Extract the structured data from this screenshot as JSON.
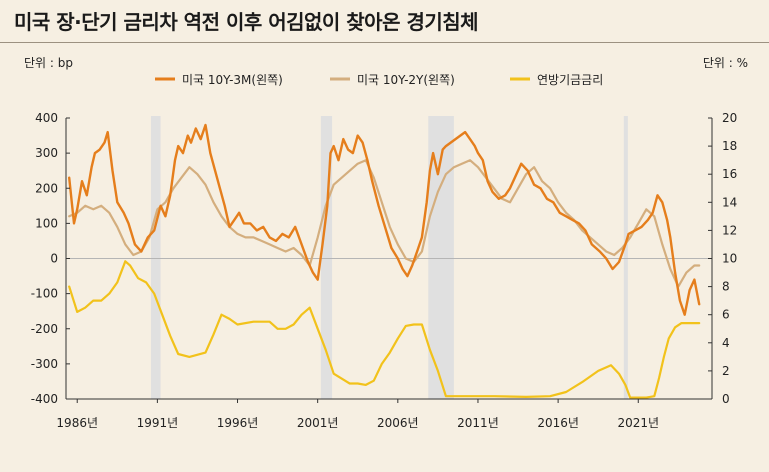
{
  "title": "미국 장·단기 금리차 역전 이후 어김없이 찾아온 경기침체",
  "chart_data": {
    "type": "line",
    "left_unit": "단위 : bp",
    "right_unit": "단위 : %",
    "colors": {
      "10y3m": "#e57e1c",
      "10y2y": "#d4ae7e",
      "fed": "#f2c21b",
      "recession": "#e0e0e0",
      "zero_line": "#b5b5b5"
    },
    "legend": [
      {
        "key": "10y3m",
        "label": "미국 10Y-3M(왼쪽)"
      },
      {
        "key": "10y2y",
        "label": "미국 10Y-2Y(왼쪽)"
      },
      {
        "key": "fed",
        "label": "연방기금금리"
      }
    ],
    "y_left": {
      "min": -400,
      "max": 400,
      "ticks": [
        "400",
        "300",
        "200",
        "100",
        "0",
        "-100",
        "-200",
        "-300",
        "-400"
      ]
    },
    "y_right": {
      "min": 0,
      "max": 20,
      "ticks": [
        "20",
        "18",
        "16",
        "14",
        "12",
        "10",
        "8",
        "6",
        "4",
        "2",
        "0"
      ]
    },
    "x_range": [
      1985.3,
      2025.6
    ],
    "x_ticks": [
      {
        "year": 1986,
        "label": "1986년"
      },
      {
        "year": 1991,
        "label": "1991년"
      },
      {
        "year": 1996,
        "label": "1996년"
      },
      {
        "year": 2001,
        "label": "2001년"
      },
      {
        "year": 2006,
        "label": "2006년"
      },
      {
        "year": 2011,
        "label": "2011년"
      },
      {
        "year": 2016,
        "label": "2016년"
      },
      {
        "year": 2021,
        "label": "2021년"
      }
    ],
    "recessions": [
      [
        1990.6,
        1991.2
      ],
      [
        2001.2,
        2001.9
      ],
      [
        2007.9,
        2009.5
      ],
      [
        2020.1,
        2020.35
      ]
    ],
    "series": [
      {
        "key": "10y3m",
        "name": "미국 10Y-3M(왼쪽)",
        "x": [
          1985.5,
          1985.8,
          1986.0,
          1986.3,
          1986.6,
          1986.9,
          1987.1,
          1987.4,
          1987.7,
          1987.9,
          1988.2,
          1988.5,
          1988.9,
          1989.2,
          1989.6,
          1990.0,
          1990.4,
          1990.8,
          1991.2,
          1991.5,
          1991.8,
          1992.1,
          1992.3,
          1992.6,
          1992.9,
          1993.1,
          1993.4,
          1993.7,
          1994.0,
          1994.3,
          1994.6,
          1994.9,
          1995.2,
          1995.5,
          1995.8,
          1996.1,
          1996.4,
          1996.8,
          1997.2,
          1997.6,
          1998.0,
          1998.4,
          1998.8,
          1999.2,
          1999.6,
          2000.0,
          2000.4,
          2000.7,
          2001.0,
          2001.3,
          2001.6,
          2001.8,
          2002.0,
          2002.3,
          2002.6,
          2002.9,
          2003.2,
          2003.5,
          2003.8,
          2004.1,
          2004.4,
          2004.8,
          2005.2,
          2005.6,
          2006.0,
          2006.3,
          2006.6,
          2006.9,
          2007.2,
          2007.5,
          2007.8,
          2008.0,
          2008.2,
          2008.5,
          2008.8,
          2009.0,
          2009.3,
          2009.6,
          2009.9,
          2010.2,
          2010.5,
          2010.8,
          2011.0,
          2011.3,
          2011.6,
          2011.9,
          2012.3,
          2012.7,
          2013.0,
          2013.3,
          2013.7,
          2014.1,
          2014.5,
          2014.9,
          2015.3,
          2015.7,
          2016.1,
          2016.5,
          2016.9,
          2017.3,
          2017.7,
          2018.1,
          2018.6,
          2019.0,
          2019.4,
          2019.8,
          2020.2,
          2020.4,
          2020.8,
          2021.2,
          2021.6,
          2021.9,
          2022.2,
          2022.5,
          2022.8,
          2023.0,
          2023.3,
          2023.6,
          2023.9,
          2024.2,
          2024.5,
          2024.8
        ],
        "y": [
          230,
          100,
          140,
          220,
          180,
          260,
          300,
          310,
          330,
          360,
          250,
          160,
          130,
          100,
          40,
          20,
          60,
          80,
          150,
          120,
          180,
          280,
          320,
          300,
          350,
          330,
          370,
          340,
          380,
          300,
          250,
          200,
          150,
          90,
          110,
          130,
          100,
          100,
          80,
          90,
          60,
          50,
          70,
          60,
          90,
          40,
          -10,
          -40,
          -60,
          40,
          150,
          300,
          320,
          280,
          340,
          310,
          300,
          350,
          330,
          280,
          220,
          150,
          90,
          30,
          0,
          -30,
          -50,
          -20,
          20,
          60,
          160,
          250,
          300,
          240,
          310,
          320,
          330,
          340,
          350,
          360,
          340,
          320,
          300,
          280,
          220,
          190,
          170,
          180,
          200,
          230,
          270,
          250,
          210,
          200,
          170,
          160,
          130,
          120,
          110,
          100,
          80,
          40,
          20,
          0,
          -30,
          -10,
          40,
          70,
          80,
          90,
          110,
          130,
          180,
          160,
          110,
          60,
          -40,
          -120,
          -160,
          -90,
          -60,
          -130
        ]
      },
      {
        "key": "10y2y",
        "name": "미국 10Y-2Y(왼쪽)",
        "x": [
          1985.5,
          1986.0,
          1986.5,
          1987.0,
          1987.5,
          1988.0,
          1988.5,
          1989.0,
          1989.5,
          1990.0,
          1990.5,
          1991.0,
          1991.5,
          1992.0,
          1992.5,
          1993.0,
          1993.5,
          1994.0,
          1994.5,
          1995.0,
          1995.5,
          1996.0,
          1996.5,
          1997.0,
          1997.5,
          1998.0,
          1998.5,
          1999.0,
          1999.5,
          2000.0,
          2000.5,
          2001.0,
          2001.5,
          2002.0,
          2002.5,
          2003.0,
          2003.5,
          2004.0,
          2004.5,
          2005.0,
          2005.5,
          2006.0,
          2006.5,
          2007.0,
          2007.5,
          2008.0,
          2008.5,
          2009.0,
          2009.5,
          2010.0,
          2010.5,
          2011.0,
          2011.5,
          2012.0,
          2012.5,
          2013.0,
          2013.5,
          2014.0,
          2014.5,
          2015.0,
          2015.5,
          2016.0,
          2016.5,
          2017.0,
          2017.5,
          2018.0,
          2018.5,
          2019.0,
          2019.5,
          2020.0,
          2020.5,
          2021.0,
          2021.5,
          2022.0,
          2022.5,
          2023.0,
          2023.5,
          2024.0,
          2024.5,
          2024.8
        ],
        "y": [
          120,
          130,
          150,
          140,
          150,
          130,
          90,
          40,
          10,
          20,
          60,
          140,
          160,
          200,
          230,
          260,
          240,
          210,
          160,
          120,
          90,
          70,
          60,
          60,
          50,
          40,
          30,
          20,
          30,
          10,
          -20,
          60,
          150,
          210,
          230,
          250,
          270,
          280,
          230,
          160,
          90,
          40,
          0,
          -10,
          20,
          120,
          190,
          240,
          260,
          270,
          280,
          260,
          230,
          200,
          170,
          160,
          200,
          240,
          260,
          220,
          200,
          160,
          130,
          110,
          80,
          60,
          40,
          20,
          10,
          30,
          60,
          100,
          140,
          120,
          40,
          -30,
          -80,
          -40,
          -20,
          -20
        ]
      },
      {
        "key": "fed",
        "name": "연방기금금리",
        "x": [
          1985.5,
          1986.0,
          1986.5,
          1987.0,
          1987.5,
          1988.0,
          1988.5,
          1989.0,
          1989.3,
          1989.8,
          1990.3,
          1990.8,
          1991.3,
          1991.8,
          1992.3,
          1993.0,
          1994.0,
          1994.5,
          1995.0,
          1995.5,
          1996.0,
          1997.0,
          1998.0,
          1998.5,
          1999.0,
          1999.5,
          2000.0,
          2000.5,
          2001.0,
          2001.5,
          2002.0,
          2003.0,
          2003.5,
          2004.0,
          2004.5,
          2005.0,
          2005.5,
          2006.0,
          2006.5,
          2007.0,
          2007.5,
          2008.0,
          2008.5,
          2009.0,
          2010.0,
          2012.0,
          2014.0,
          2015.5,
          2016.5,
          2017.5,
          2018.5,
          2019.3,
          2019.8,
          2020.2,
          2020.5,
          2021.5,
          2022.0,
          2022.3,
          2022.6,
          2022.9,
          2023.3,
          2023.7,
          2024.2,
          2024.8
        ],
        "y": [
          8.0,
          6.2,
          6.5,
          7.0,
          7.0,
          7.5,
          8.3,
          9.8,
          9.5,
          8.6,
          8.3,
          7.5,
          6.0,
          4.5,
          3.2,
          3.0,
          3.3,
          4.6,
          6.0,
          5.7,
          5.3,
          5.5,
          5.5,
          5.0,
          5.0,
          5.3,
          6.0,
          6.5,
          5.0,
          3.5,
          1.8,
          1.1,
          1.1,
          1.0,
          1.3,
          2.5,
          3.3,
          4.3,
          5.2,
          5.3,
          5.3,
          3.5,
          2.0,
          0.2,
          0.2,
          0.2,
          0.15,
          0.2,
          0.5,
          1.2,
          2.0,
          2.4,
          1.8,
          1.0,
          0.1,
          0.1,
          0.2,
          1.5,
          3.0,
          4.3,
          5.1,
          5.4,
          5.4,
          5.4
        ]
      }
    ]
  }
}
